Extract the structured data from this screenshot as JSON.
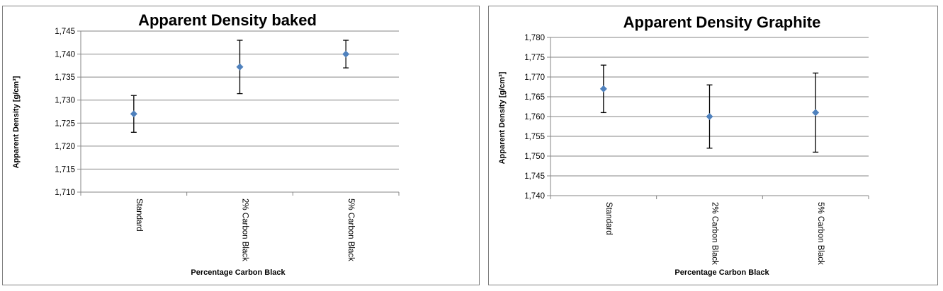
{
  "colors": {
    "marker": "#4f81bd",
    "gridline": "#868686",
    "errorbar": "#000000",
    "border": "#7f7f7f"
  },
  "chart_data": [
    {
      "type": "scatter",
      "title": "Apparent Density baked",
      "xlabel": "Percentage Carbon Black",
      "ylabel": "Apparent Density [g/cm³]",
      "categories": [
        "Standard",
        "2% Carbon Black",
        "5% Carbon Black"
      ],
      "values": [
        1.727,
        1.7372,
        1.74
      ],
      "error_low": [
        1.723,
        1.7314,
        1.737
      ],
      "error_high": [
        1.731,
        1.743,
        1.743
      ],
      "ylim": [
        1.71,
        1.745
      ],
      "yticks": [
        "1,710",
        "1,715",
        "1,720",
        "1,725",
        "1,730",
        "1,735",
        "1,740",
        "1,745"
      ],
      "grid": true,
      "legend": "none",
      "marker": "diamond"
    },
    {
      "type": "scatter",
      "title": "Apparent Density Graphite",
      "xlabel": "Percentage Carbon Black",
      "ylabel": "Apparent Density [g/cm³]",
      "categories": [
        "Standard",
        "2% Carbon Black",
        "5% Carbon Black"
      ],
      "values": [
        1.767,
        1.76,
        1.761
      ],
      "error_low": [
        1.761,
        1.752,
        1.751
      ],
      "error_high": [
        1.773,
        1.768,
        1.771
      ],
      "ylim": [
        1.74,
        1.78
      ],
      "yticks": [
        "1,740",
        "1,745",
        "1,750",
        "1,755",
        "1,760",
        "1,765",
        "1,770",
        "1,775",
        "1,780"
      ],
      "grid": true,
      "legend": "none",
      "marker": "diamond"
    }
  ]
}
